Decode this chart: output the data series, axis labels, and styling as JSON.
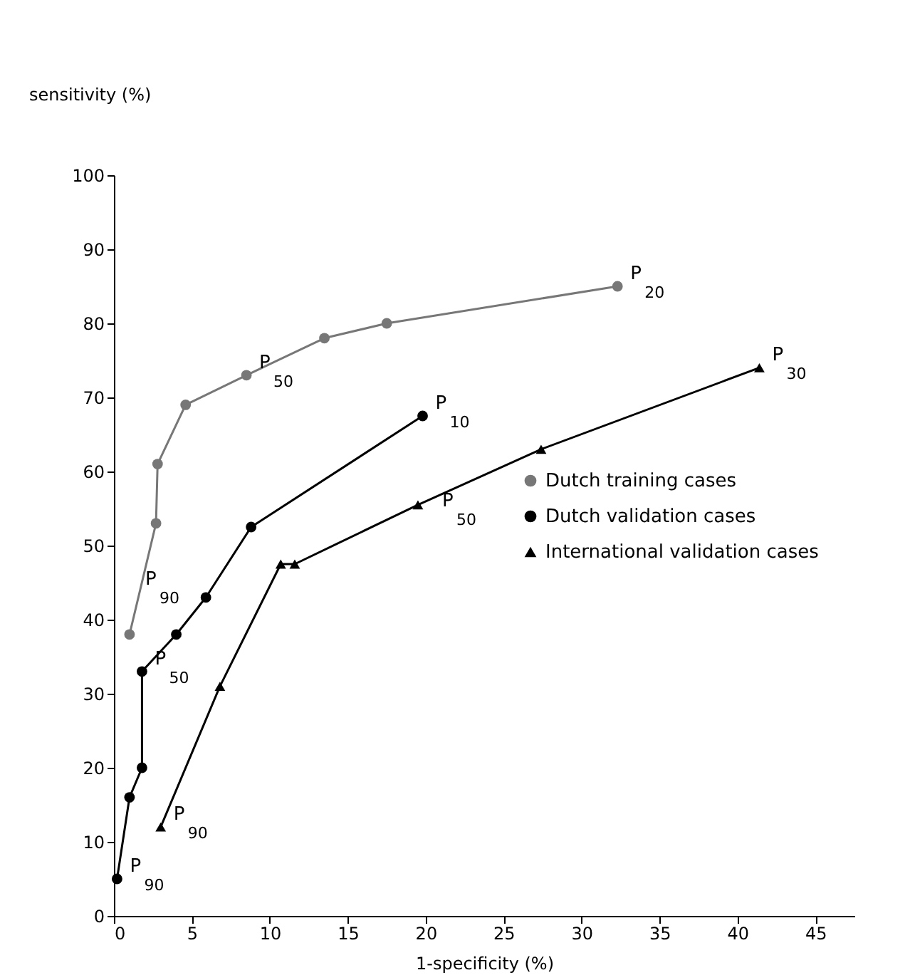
{
  "chart_data": {
    "type": "line",
    "xlabel": "1-specificity (%)",
    "ylabel": "sensitivity (%)",
    "xlim": [
      0,
      47.5
    ],
    "xticks": [
      0,
      5,
      10,
      15,
      20,
      25,
      30,
      35,
      40,
      45
    ],
    "ylim": [
      0,
      100
    ],
    "yticks": [
      0,
      10,
      20,
      30,
      40,
      50,
      60,
      70,
      80,
      90,
      100
    ],
    "grid": false,
    "legend": "right",
    "line_style": "solid",
    "series": [
      {
        "name": "Dutch training cases",
        "color": "#777777",
        "marker": "circle",
        "x": [
          1,
          2.7,
          2.8,
          4.6,
          8.5,
          13.5,
          17.5,
          32.3
        ],
        "values": [
          38,
          53,
          61,
          69,
          73,
          78,
          80,
          85
        ]
      },
      {
        "name": "Dutch validation cases",
        "color": "#000000",
        "marker": "circle",
        "x": [
          0.2,
          1,
          1.8,
          1.8,
          4,
          5.9,
          8.8,
          19.8
        ],
        "values": [
          5,
          16,
          20,
          33,
          38,
          43,
          52.5,
          67.5
        ]
      },
      {
        "name": "International validation cases",
        "color": "#000000",
        "marker": "triangle",
        "x": [
          3,
          6.8,
          10.7,
          11.6,
          19.5,
          27.4,
          41.4
        ],
        "values": [
          12,
          31,
          47.5,
          47.5,
          55.5,
          63,
          74
        ]
      }
    ],
    "annotations": [
      {
        "text": "P$_{90}$",
        "x": 1,
        "y": 38
      },
      {
        "text": "P$_{50}$",
        "x": 8.5,
        "y": 73
      },
      {
        "text": "P$_{20}$",
        "x": 32.3,
        "y": 85
      },
      {
        "text": "P$_{90}$",
        "x": 0.2,
        "y": 5
      },
      {
        "text": "P$_{50}$",
        "x": 1.8,
        "y": 33
      },
      {
        "text": "P$_{10}$",
        "x": 19.8,
        "y": 67.5
      },
      {
        "text": "P$_{90}$",
        "x": 3,
        "y": 12
      },
      {
        "text": "P$_{50}$",
        "x": 19.5,
        "y": 55.5
      },
      {
        "text": "P$_{30}$",
        "x": 41.4,
        "y": 74
      }
    ]
  }
}
